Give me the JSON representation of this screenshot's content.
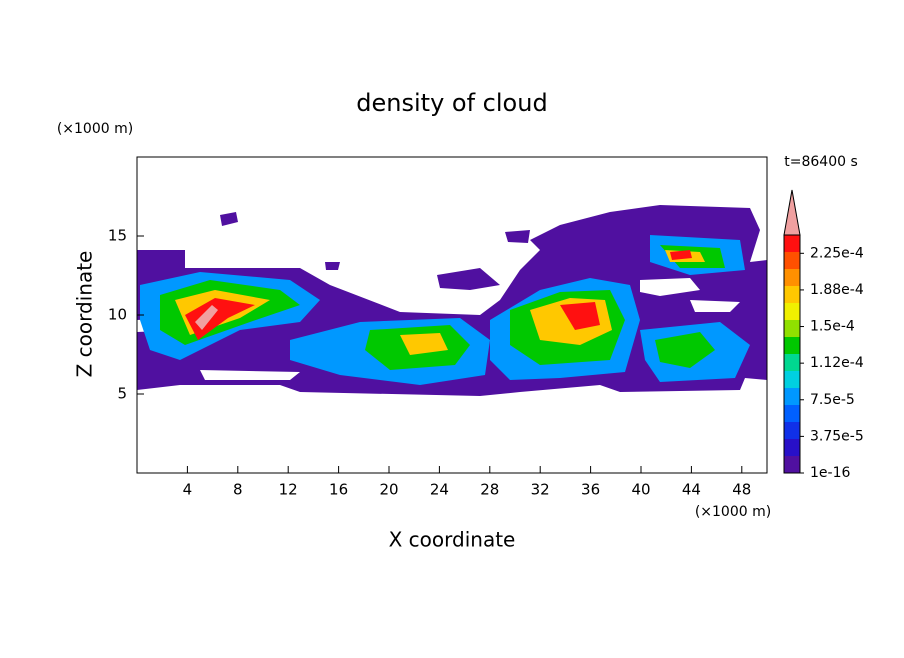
{
  "chart_data": {
    "type": "contour",
    "title": "density of cloud",
    "x_label": "X coordinate",
    "y_label": "Z coordinate",
    "x_unit": "(×1000 m)",
    "y_unit": "(×1000 m)",
    "time_label": "t=86400 s",
    "xlim": [
      0,
      50
    ],
    "xticks": [
      4,
      8,
      12,
      16,
      20,
      24,
      28,
      32,
      36,
      40,
      44,
      48
    ],
    "ylim": [
      0,
      20
    ],
    "yticks": [
      5,
      10,
      15
    ],
    "colorbar": {
      "clim": [
        1e-16,
        0.00024375
      ],
      "ticks": [
        {
          "value": 1e-16,
          "label": "1e-16"
        },
        {
          "value": 3.75e-05,
          "label": "3.75e-5"
        },
        {
          "value": 7.5e-05,
          "label": "7.5e-5"
        },
        {
          "value": 0.0001125,
          "label": "1.12e-4"
        },
        {
          "value": 0.00015,
          "label": "1.5e-4"
        },
        {
          "value": 0.0001875,
          "label": "1.88e-4"
        },
        {
          "value": 0.000225,
          "label": "2.25e-4"
        }
      ],
      "colors": [
        "#5010a0",
        "#2810c8",
        "#1030e8",
        "#0060ff",
        "#0098ff",
        "#00d0e0",
        "#00d890",
        "#00c800",
        "#90e000",
        "#f0f000",
        "#ffc800",
        "#ff9000",
        "#ff5000",
        "#ff1010"
      ],
      "extend_color": "#f0a0a0"
    }
  }
}
